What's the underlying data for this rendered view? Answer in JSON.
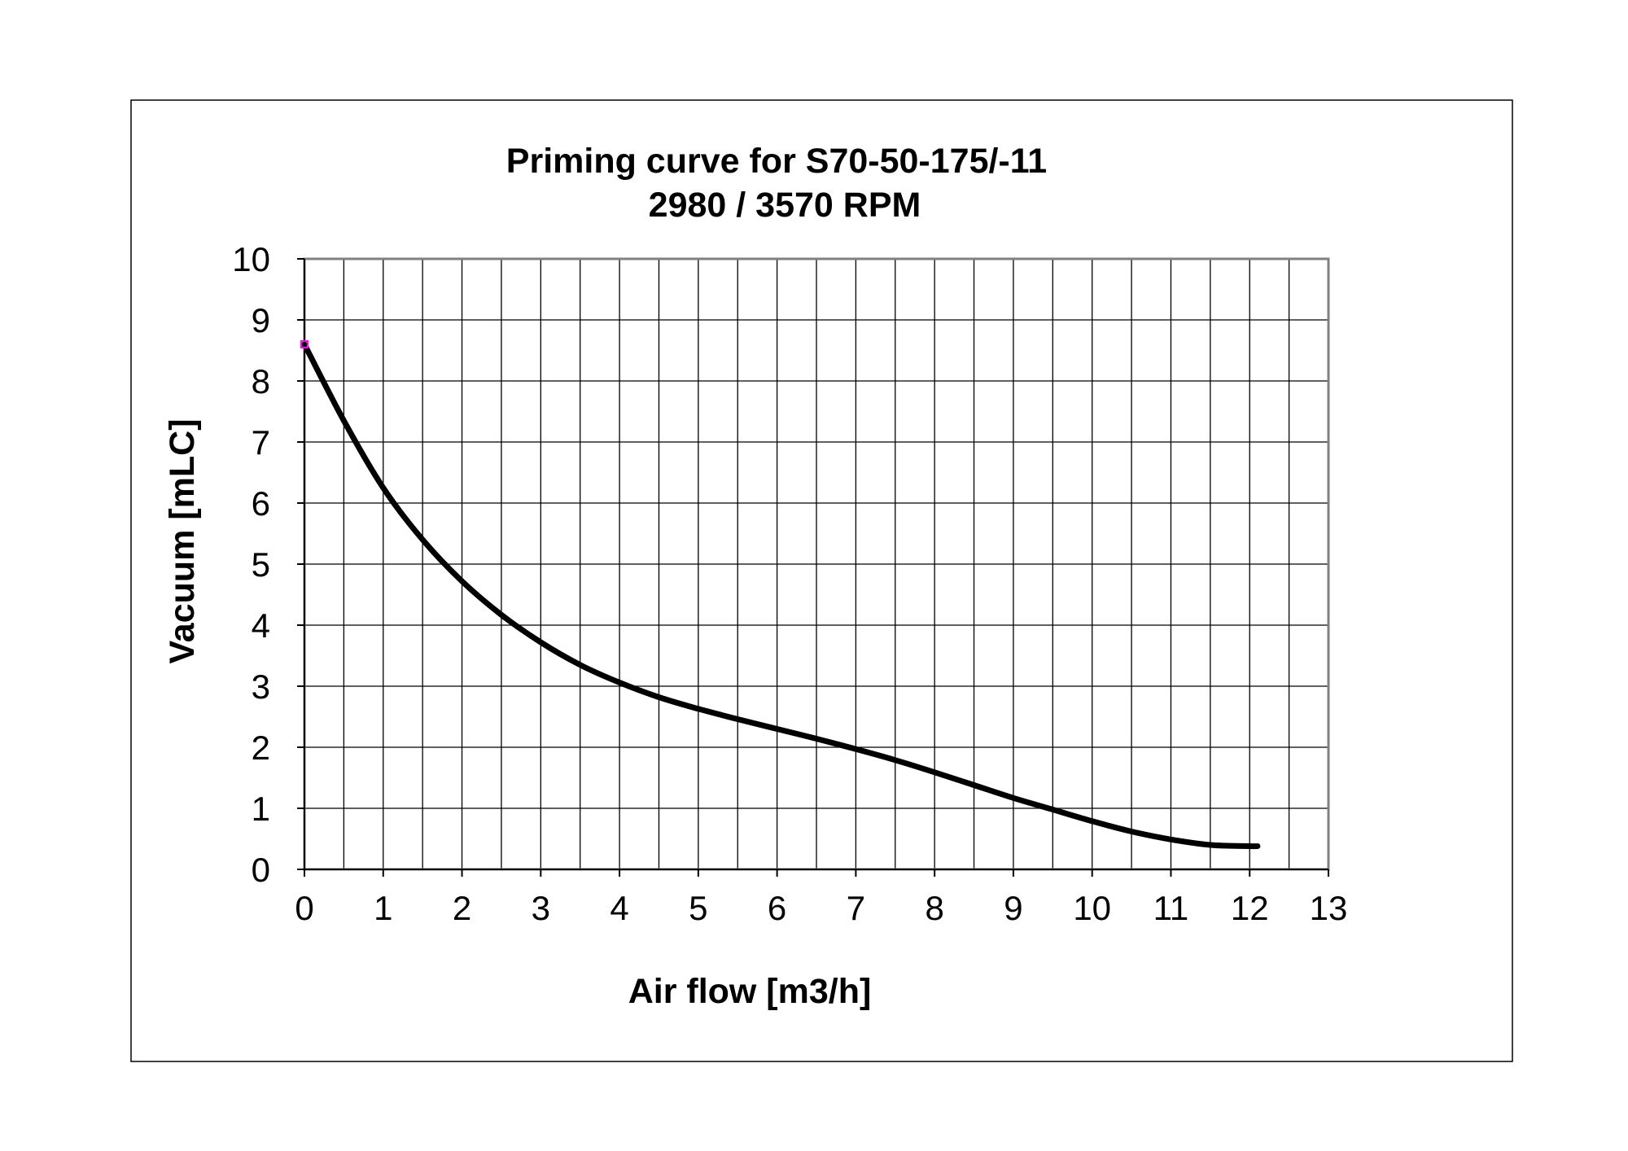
{
  "chart_data": {
    "type": "line",
    "title": "Priming curve for S70-50-175/-11",
    "subtitle": "2980 / 3570 RPM",
    "xlabel": "Air flow [m3/h]",
    "ylabel": "Vacuum [mLC]",
    "xlim": [
      0,
      13
    ],
    "ylim": [
      0,
      10
    ],
    "x_ticks": [
      "0",
      "1",
      "2",
      "3",
      "4",
      "5",
      "6",
      "7",
      "8",
      "9",
      "10",
      "11",
      "12",
      "13"
    ],
    "y_ticks": [
      "0",
      "1",
      "2",
      "3",
      "4",
      "5",
      "6",
      "7",
      "8",
      "9",
      "10"
    ],
    "grid": true,
    "legend": "none",
    "series": [
      {
        "color": "#000000",
        "x": [
          0,
          0.5,
          1,
          1.5,
          2,
          2.5,
          3,
          3.5,
          4,
          4.5,
          5,
          5.5,
          6,
          6.5,
          7,
          7.5,
          8,
          8.5,
          9,
          9.5,
          10,
          10.5,
          11,
          11.5,
          12,
          12.1
        ],
        "y": [
          8.6,
          7.35,
          6.25,
          5.4,
          4.72,
          4.17,
          3.72,
          3.35,
          3.06,
          2.82,
          2.63,
          2.46,
          2.3,
          2.14,
          1.97,
          1.79,
          1.59,
          1.38,
          1.17,
          0.98,
          0.79,
          0.62,
          0.49,
          0.4,
          0.38,
          0.38
        ]
      }
    ],
    "start_marker_color": "#ff00ff"
  }
}
